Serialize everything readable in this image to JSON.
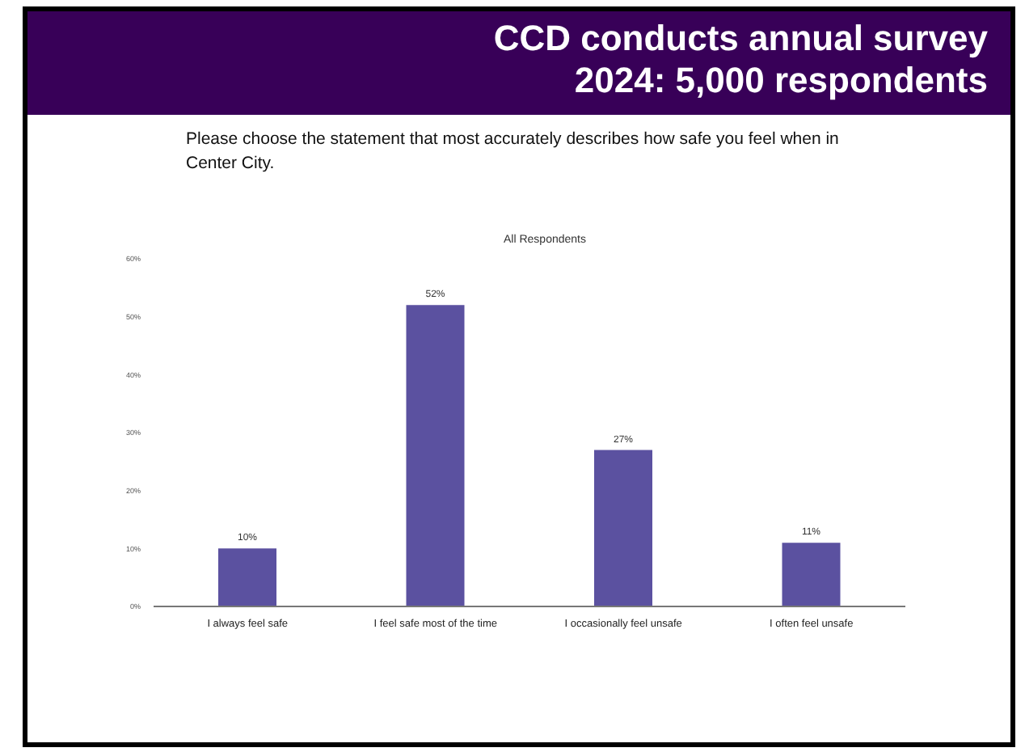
{
  "chart_data": {
    "type": "bar",
    "title": "CCD conducts annual survey\n2024: 5,000 respondents",
    "subtitle": "Please choose the statement that most accurately describes how safe you feel when in Center City.",
    "annotations": [
      "All Respondents"
    ],
    "categories": [
      "I always feel safe",
      "I feel safe most of the time",
      "I occasionally feel unsafe",
      "I often feel unsafe"
    ],
    "values": [
      10,
      52,
      27,
      11
    ],
    "value_labels": [
      "10%",
      "52%",
      "27%",
      "11%"
    ],
    "color": "#5b51a0",
    "ylim": [
      0,
      60
    ],
    "yticks": [
      {
        "value": 0,
        "label": "0%"
      },
      {
        "value": 10,
        "label": "10%"
      },
      {
        "value": 20,
        "label": "20%"
      },
      {
        "value": 30,
        "label": "30%"
      },
      {
        "value": 40,
        "label": "40%"
      },
      {
        "value": 50,
        "label": "50%"
      },
      {
        "value": 60,
        "label": "60%"
      }
    ],
    "grid": false,
    "legend": false
  }
}
